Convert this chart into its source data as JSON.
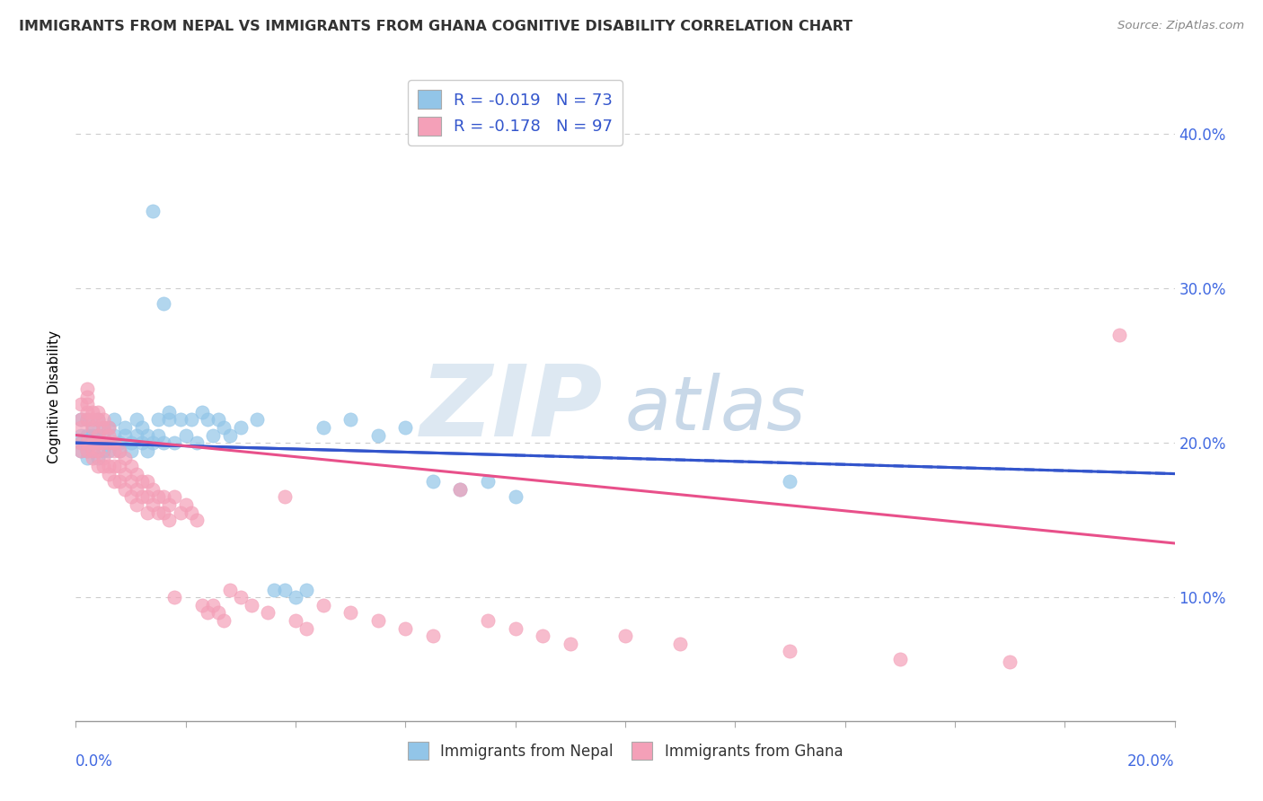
{
  "title": "IMMIGRANTS FROM NEPAL VS IMMIGRANTS FROM GHANA COGNITIVE DISABILITY CORRELATION CHART",
  "source": "Source: ZipAtlas.com",
  "ylabel": "Cognitive Disability",
  "xlim": [
    0.0,
    0.2
  ],
  "ylim": [
    0.02,
    0.44
  ],
  "ytick_vals": [
    0.1,
    0.2,
    0.3,
    0.4
  ],
  "ytick_labels": [
    "10.0%",
    "20.0%",
    "30.0%",
    "40.0%"
  ],
  "nepal_color": "#92C5E8",
  "ghana_color": "#F4A0B8",
  "nepal_line_color": "#3355CC",
  "ghana_line_color": "#E8508A",
  "nepal_R": -0.019,
  "nepal_N": 73,
  "ghana_R": -0.178,
  "ghana_N": 97,
  "legend_label_nepal": "Immigrants from Nepal",
  "legend_label_ghana": "Immigrants from Ghana",
  "nepal_scatter": [
    [
      0.001,
      0.195
    ],
    [
      0.001,
      0.2
    ],
    [
      0.001,
      0.205
    ],
    [
      0.001,
      0.215
    ],
    [
      0.002,
      0.19
    ],
    [
      0.002,
      0.2
    ],
    [
      0.002,
      0.205
    ],
    [
      0.002,
      0.215
    ],
    [
      0.002,
      0.195
    ],
    [
      0.003,
      0.2
    ],
    [
      0.003,
      0.205
    ],
    [
      0.003,
      0.21
    ],
    [
      0.003,
      0.195
    ],
    [
      0.004,
      0.2
    ],
    [
      0.004,
      0.205
    ],
    [
      0.004,
      0.215
    ],
    [
      0.004,
      0.19
    ],
    [
      0.005,
      0.195
    ],
    [
      0.005,
      0.205
    ],
    [
      0.005,
      0.21
    ],
    [
      0.005,
      0.2
    ],
    [
      0.006,
      0.195
    ],
    [
      0.006,
      0.2
    ],
    [
      0.006,
      0.21
    ],
    [
      0.007,
      0.2
    ],
    [
      0.007,
      0.205
    ],
    [
      0.007,
      0.215
    ],
    [
      0.008,
      0.2
    ],
    [
      0.008,
      0.195
    ],
    [
      0.009,
      0.205
    ],
    [
      0.009,
      0.21
    ],
    [
      0.01,
      0.2
    ],
    [
      0.01,
      0.195
    ],
    [
      0.011,
      0.205
    ],
    [
      0.011,
      0.215
    ],
    [
      0.012,
      0.2
    ],
    [
      0.012,
      0.21
    ],
    [
      0.013,
      0.205
    ],
    [
      0.013,
      0.195
    ],
    [
      0.014,
      0.2
    ],
    [
      0.014,
      0.35
    ],
    [
      0.015,
      0.205
    ],
    [
      0.015,
      0.215
    ],
    [
      0.016,
      0.2
    ],
    [
      0.016,
      0.29
    ],
    [
      0.017,
      0.215
    ],
    [
      0.017,
      0.22
    ],
    [
      0.018,
      0.2
    ],
    [
      0.019,
      0.215
    ],
    [
      0.02,
      0.205
    ],
    [
      0.021,
      0.215
    ],
    [
      0.022,
      0.2
    ],
    [
      0.023,
      0.22
    ],
    [
      0.024,
      0.215
    ],
    [
      0.025,
      0.205
    ],
    [
      0.026,
      0.215
    ],
    [
      0.027,
      0.21
    ],
    [
      0.028,
      0.205
    ],
    [
      0.03,
      0.21
    ],
    [
      0.033,
      0.215
    ],
    [
      0.036,
      0.105
    ],
    [
      0.038,
      0.105
    ],
    [
      0.04,
      0.1
    ],
    [
      0.042,
      0.105
    ],
    [
      0.045,
      0.21
    ],
    [
      0.05,
      0.215
    ],
    [
      0.055,
      0.205
    ],
    [
      0.06,
      0.21
    ],
    [
      0.065,
      0.175
    ],
    [
      0.07,
      0.17
    ],
    [
      0.075,
      0.175
    ],
    [
      0.08,
      0.165
    ],
    [
      0.13,
      0.175
    ]
  ],
  "ghana_scatter": [
    [
      0.001,
      0.2
    ],
    [
      0.001,
      0.21
    ],
    [
      0.001,
      0.215
    ],
    [
      0.001,
      0.225
    ],
    [
      0.001,
      0.195
    ],
    [
      0.002,
      0.2
    ],
    [
      0.002,
      0.215
    ],
    [
      0.002,
      0.22
    ],
    [
      0.002,
      0.225
    ],
    [
      0.002,
      0.23
    ],
    [
      0.002,
      0.235
    ],
    [
      0.002,
      0.195
    ],
    [
      0.003,
      0.2
    ],
    [
      0.003,
      0.21
    ],
    [
      0.003,
      0.215
    ],
    [
      0.003,
      0.22
    ],
    [
      0.003,
      0.195
    ],
    [
      0.003,
      0.19
    ],
    [
      0.004,
      0.2
    ],
    [
      0.004,
      0.205
    ],
    [
      0.004,
      0.215
    ],
    [
      0.004,
      0.22
    ],
    [
      0.004,
      0.195
    ],
    [
      0.004,
      0.185
    ],
    [
      0.005,
      0.2
    ],
    [
      0.005,
      0.21
    ],
    [
      0.005,
      0.215
    ],
    [
      0.005,
      0.19
    ],
    [
      0.005,
      0.185
    ],
    [
      0.006,
      0.2
    ],
    [
      0.006,
      0.205
    ],
    [
      0.006,
      0.21
    ],
    [
      0.006,
      0.185
    ],
    [
      0.006,
      0.18
    ],
    [
      0.007,
      0.195
    ],
    [
      0.007,
      0.2
    ],
    [
      0.007,
      0.185
    ],
    [
      0.007,
      0.175
    ],
    [
      0.008,
      0.195
    ],
    [
      0.008,
      0.185
    ],
    [
      0.008,
      0.175
    ],
    [
      0.009,
      0.19
    ],
    [
      0.009,
      0.18
    ],
    [
      0.009,
      0.17
    ],
    [
      0.01,
      0.185
    ],
    [
      0.01,
      0.175
    ],
    [
      0.01,
      0.165
    ],
    [
      0.011,
      0.18
    ],
    [
      0.011,
      0.17
    ],
    [
      0.011,
      0.16
    ],
    [
      0.012,
      0.175
    ],
    [
      0.012,
      0.165
    ],
    [
      0.013,
      0.175
    ],
    [
      0.013,
      0.165
    ],
    [
      0.013,
      0.155
    ],
    [
      0.014,
      0.17
    ],
    [
      0.014,
      0.16
    ],
    [
      0.015,
      0.165
    ],
    [
      0.015,
      0.155
    ],
    [
      0.016,
      0.165
    ],
    [
      0.016,
      0.155
    ],
    [
      0.017,
      0.16
    ],
    [
      0.017,
      0.15
    ],
    [
      0.018,
      0.165
    ],
    [
      0.018,
      0.1
    ],
    [
      0.019,
      0.155
    ],
    [
      0.02,
      0.16
    ],
    [
      0.021,
      0.155
    ],
    [
      0.022,
      0.15
    ],
    [
      0.023,
      0.095
    ],
    [
      0.024,
      0.09
    ],
    [
      0.025,
      0.095
    ],
    [
      0.026,
      0.09
    ],
    [
      0.027,
      0.085
    ],
    [
      0.028,
      0.105
    ],
    [
      0.03,
      0.1
    ],
    [
      0.032,
      0.095
    ],
    [
      0.035,
      0.09
    ],
    [
      0.038,
      0.165
    ],
    [
      0.04,
      0.085
    ],
    [
      0.042,
      0.08
    ],
    [
      0.045,
      0.095
    ],
    [
      0.05,
      0.09
    ],
    [
      0.055,
      0.085
    ],
    [
      0.06,
      0.08
    ],
    [
      0.065,
      0.075
    ],
    [
      0.07,
      0.17
    ],
    [
      0.075,
      0.085
    ],
    [
      0.08,
      0.08
    ],
    [
      0.085,
      0.075
    ],
    [
      0.09,
      0.07
    ],
    [
      0.1,
      0.075
    ],
    [
      0.11,
      0.07
    ],
    [
      0.13,
      0.065
    ],
    [
      0.15,
      0.06
    ],
    [
      0.17,
      0.058
    ],
    [
      0.19,
      0.27
    ]
  ]
}
